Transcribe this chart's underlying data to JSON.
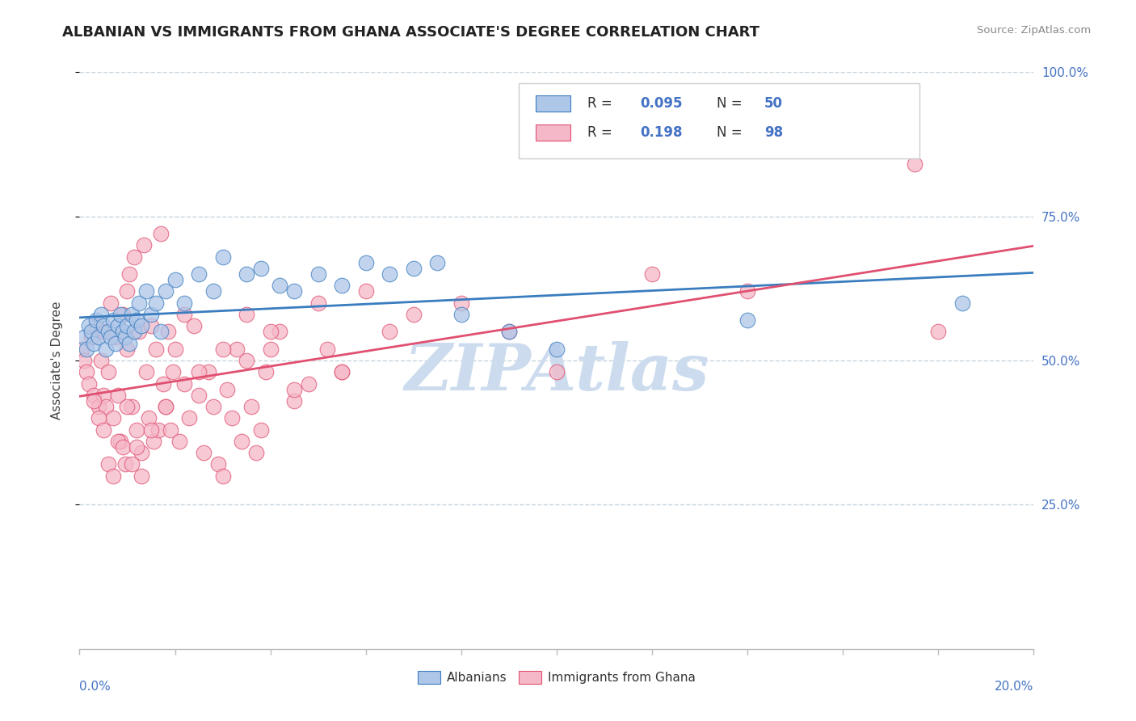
{
  "title": "ALBANIAN VS IMMIGRANTS FROM GHANA ASSOCIATE'S DEGREE CORRELATION CHART",
  "source": "Source: ZipAtlas.com",
  "ylabel": "Associate's Degree",
  "xlim": [
    0.0,
    20.0
  ],
  "ylim": [
    0.0,
    100.0
  ],
  "blue_color": "#aec6e8",
  "pink_color": "#f5b8c8",
  "blue_line_color": "#3a7dbf",
  "pink_line_color": "#e05070",
  "watermark": "ZIPAtlas",
  "watermark_color": "#ccdcee",
  "background_color": "#ffffff",
  "grid_color": "#c8d4dc",
  "albanians_x": [
    0.1,
    0.15,
    0.2,
    0.25,
    0.3,
    0.35,
    0.4,
    0.45,
    0.5,
    0.55,
    0.6,
    0.65,
    0.7,
    0.75,
    0.8,
    0.85,
    0.9,
    0.95,
    1.0,
    1.05,
    1.1,
    1.15,
    1.2,
    1.25,
    1.3,
    1.4,
    1.5,
    1.6,
    1.7,
    1.8,
    2.0,
    2.2,
    2.5,
    2.8,
    3.0,
    3.5,
    3.8,
    4.2,
    4.5,
    5.0,
    5.5,
    6.0,
    6.5,
    7.0,
    7.5,
    8.0,
    9.0,
    10.0,
    14.0,
    18.5
  ],
  "albanians_y": [
    54,
    52,
    56,
    55,
    53,
    57,
    54,
    58,
    56,
    52,
    55,
    54,
    57,
    53,
    56,
    58,
    55,
    54,
    56,
    53,
    58,
    55,
    57,
    60,
    56,
    62,
    58,
    60,
    55,
    62,
    64,
    60,
    65,
    62,
    68,
    65,
    66,
    63,
    62,
    65,
    63,
    67,
    65,
    66,
    67,
    58,
    55,
    52,
    57,
    60
  ],
  "ghana_x": [
    0.05,
    0.1,
    0.15,
    0.2,
    0.25,
    0.3,
    0.35,
    0.4,
    0.45,
    0.5,
    0.5,
    0.55,
    0.6,
    0.65,
    0.7,
    0.75,
    0.8,
    0.85,
    0.9,
    0.95,
    1.0,
    1.0,
    1.05,
    1.1,
    1.15,
    1.2,
    1.25,
    1.3,
    1.35,
    1.4,
    1.45,
    1.5,
    1.55,
    1.6,
    1.65,
    1.7,
    1.75,
    1.8,
    1.85,
    1.9,
    1.95,
    2.0,
    2.1,
    2.2,
    2.3,
    2.4,
    2.5,
    2.6,
    2.7,
    2.8,
    2.9,
    3.0,
    3.1,
    3.2,
    3.3,
    3.4,
    3.5,
    3.6,
    3.7,
    3.8,
    3.9,
    4.0,
    4.2,
    4.5,
    4.8,
    5.0,
    5.2,
    5.5,
    6.0,
    6.5,
    7.0,
    8.0,
    9.0,
    10.0,
    12.0,
    14.0,
    17.5,
    18.0,
    0.3,
    0.4,
    0.5,
    0.6,
    0.7,
    0.8,
    0.9,
    1.0,
    1.1,
    1.2,
    1.3,
    1.5,
    1.8,
    2.2,
    2.5,
    3.0,
    3.5,
    4.0,
    4.5,
    5.5
  ],
  "ghana_y": [
    52,
    50,
    48,
    46,
    54,
    44,
    56,
    42,
    50,
    55,
    44,
    42,
    48,
    60,
    40,
    54,
    44,
    36,
    58,
    32,
    52,
    62,
    65,
    42,
    68,
    38,
    55,
    34,
    70,
    48,
    40,
    56,
    36,
    52,
    38,
    72,
    46,
    42,
    55,
    38,
    48,
    52,
    36,
    58,
    40,
    56,
    44,
    34,
    48,
    42,
    32,
    30,
    45,
    40,
    52,
    36,
    58,
    42,
    34,
    38,
    48,
    52,
    55,
    43,
    46,
    60,
    52,
    48,
    62,
    55,
    58,
    60,
    55,
    48,
    65,
    62,
    84,
    55,
    43,
    40,
    38,
    32,
    30,
    36,
    35,
    42,
    32,
    35,
    30,
    38,
    42,
    46,
    48,
    52,
    50,
    55,
    45,
    48
  ]
}
